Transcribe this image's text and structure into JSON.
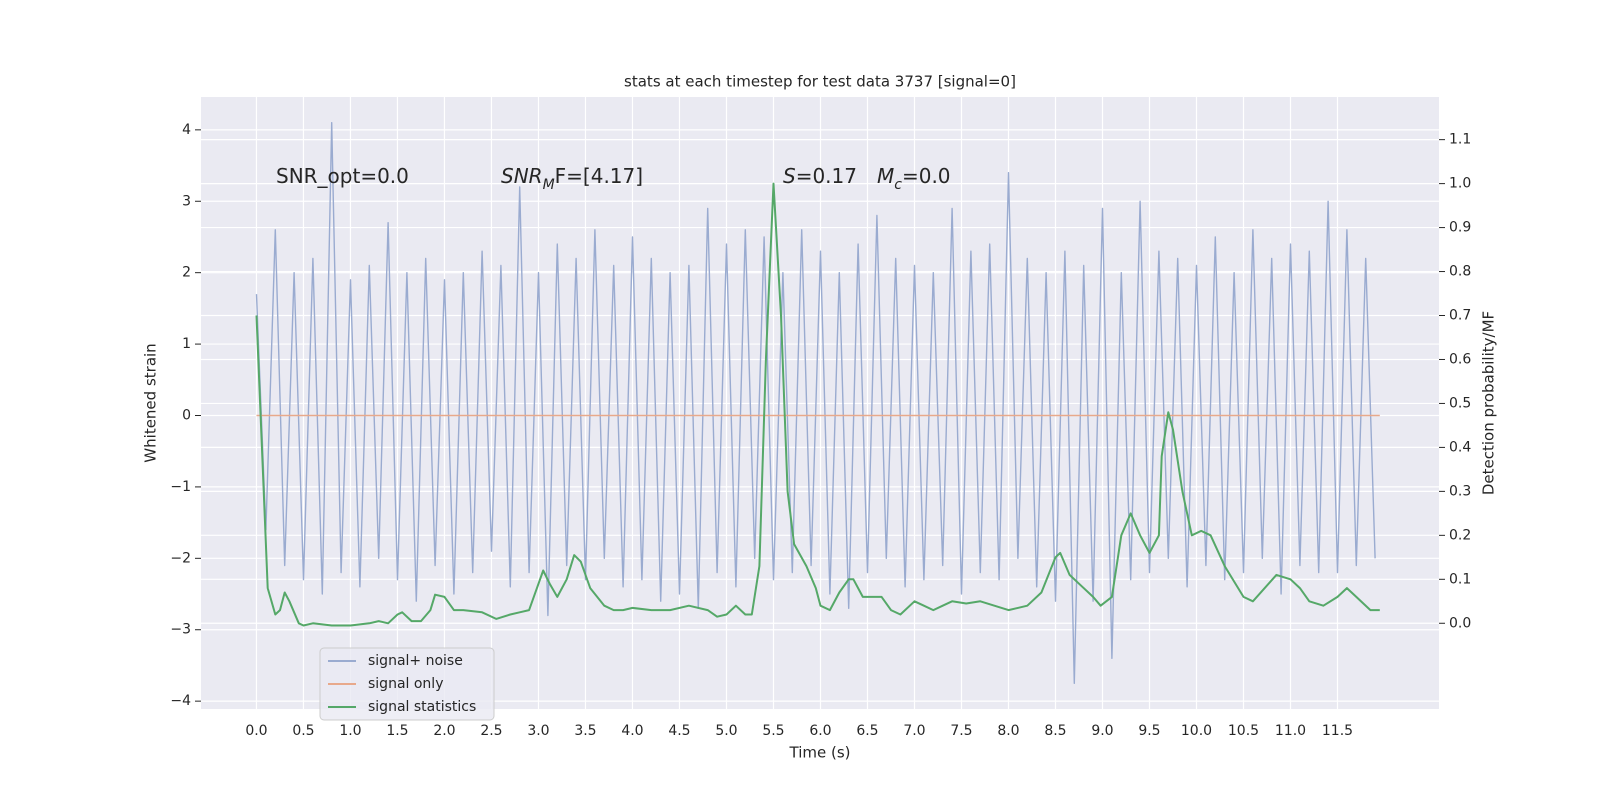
{
  "chart_data": {
    "type": "line",
    "title": "stats at each timestep for test data 3737 [signal=0]",
    "xlabel": "Time (s)",
    "ylabel": "Whitened strain",
    "y2label": "Detection probability/MF",
    "annotations": [
      {
        "segments": [
          {
            "text": "SNR_opt=0.0"
          }
        ]
      },
      {
        "segments": [
          {
            "text": "SNR",
            "italic": true
          },
          {
            "text": "M",
            "italic": true,
            "sub": true
          },
          {
            "text": "F=[4.17]"
          }
        ]
      },
      {
        "segments": [
          {
            "text": "S",
            "italic": true
          },
          {
            "text": "=0.17"
          }
        ]
      },
      {
        "segments": [
          {
            "text": "M",
            "italic": true
          },
          {
            "text": "c",
            "italic": true,
            "sub": true
          },
          {
            "text": "=0.0"
          }
        ]
      }
    ],
    "xlim": [
      -0.59,
      12.58
    ],
    "ylim": [
      -4.11,
      4.46
    ],
    "y2lim": [
      -0.195,
      1.197
    ],
    "xticks": [
      {
        "value": 0,
        "label": "0.0"
      },
      0.5,
      {
        "value": 1,
        "label": "1.0"
      },
      1.5,
      {
        "value": 2,
        "label": "2.0"
      },
      2.5,
      {
        "value": 3,
        "label": "3.0"
      },
      3.5,
      {
        "value": 4,
        "label": "4.0"
      },
      4.5,
      {
        "value": 5,
        "label": "5.0"
      },
      5.5,
      {
        "value": 6,
        "label": "6.0"
      },
      6.5,
      {
        "value": 7,
        "label": "7.0"
      },
      7.5,
      {
        "value": 8,
        "label": "8.0"
      },
      8.5,
      {
        "value": 9,
        "label": "9.0"
      },
      9.5,
      {
        "value": 10,
        "label": "10.0"
      },
      10.5,
      {
        "value": 11,
        "label": "11.0"
      },
      11.5
    ],
    "yticks": [
      {
        "value": -4,
        "label": "−4"
      },
      {
        "value": -3,
        "label": "−3"
      },
      {
        "value": -2,
        "label": "−2"
      },
      {
        "value": -1,
        "label": "−1"
      },
      0,
      1,
      2,
      3,
      4
    ],
    "y2ticks": [
      {
        "value": 0,
        "label": "0.0"
      },
      0.1,
      0.2,
      0.3,
      0.4,
      0.5,
      0.6,
      0.7,
      0.8,
      0.9,
      {
        "value": 1,
        "label": "1.0"
      },
      1.1
    ],
    "grid": true,
    "legend": "lower left",
    "series": [
      {
        "name": "signal+ noise",
        "color": "#9aabd0",
        "x": [
          0,
          0.1,
          0.2,
          0.3,
          0.4,
          0.5,
          0.6,
          0.7,
          0.8,
          0.9,
          1,
          1.1,
          1.2,
          1.3,
          1.4,
          1.5,
          1.6,
          1.7,
          1.8,
          1.9,
          2,
          2.1,
          2.2,
          2.3,
          2.4,
          2.5,
          2.6,
          2.7,
          2.8,
          2.9,
          3,
          3.1,
          3.2,
          3.3,
          3.4,
          3.5,
          3.6,
          3.7,
          3.8,
          3.9,
          4,
          4.1,
          4.2,
          4.3,
          4.4,
          4.5,
          4.6,
          4.7,
          4.8,
          4.9,
          5,
          5.1,
          5.2,
          5.3,
          5.4,
          5.5,
          5.6,
          5.7,
          5.8,
          5.9,
          6,
          6.1,
          6.2,
          6.3,
          6.4,
          6.5,
          6.6,
          6.7,
          6.8,
          6.9,
          7,
          7.1,
          7.2,
          7.3,
          7.4,
          7.5,
          7.6,
          7.7,
          7.8,
          7.9,
          8,
          8.1,
          8.2,
          8.3,
          8.4,
          8.5,
          8.6,
          8.7,
          8.8,
          8.9,
          9,
          9.1,
          9.2,
          9.3,
          9.4,
          9.5,
          9.6,
          9.7,
          9.8,
          9.9,
          10,
          10.1,
          10.2,
          10.3,
          10.4,
          10.5,
          10.6,
          10.7,
          10.8,
          10.9,
          11,
          11.1,
          11.2,
          11.3,
          11.4,
          11.5,
          11.6,
          11.7,
          11.8,
          11.9
        ],
        "values": [
          1.7,
          -1.6,
          2.6,
          -2.1,
          2.0,
          -2.3,
          2.2,
          -2.5,
          4.1,
          -2.2,
          1.9,
          -2.4,
          2.1,
          -2.0,
          2.7,
          -2.3,
          2.0,
          -2.6,
          2.2,
          -2.1,
          1.9,
          -2.5,
          2.0,
          -2.2,
          2.3,
          -1.9,
          2.1,
          -2.4,
          3.2,
          -2.2,
          2.0,
          -2.8,
          2.4,
          -2.1,
          2.2,
          -2.3,
          2.6,
          -2.0,
          2.1,
          -2.4,
          2.5,
          -2.3,
          2.2,
          -2.6,
          2.0,
          -2.5,
          2.1,
          -2.7,
          2.9,
          -2.2,
          2.4,
          -2.4,
          2.6,
          -2.0,
          2.5,
          -2.3,
          2.0,
          -2.2,
          2.6,
          -2.1,
          2.3,
          -2.5,
          2.0,
          -2.7,
          2.4,
          -2.2,
          2.8,
          -2.0,
          2.2,
          -2.4,
          2.1,
          -2.3,
          2.0,
          -2.1,
          2.9,
          -2.5,
          2.3,
          -2.2,
          2.4,
          -2.3,
          3.4,
          -2.0,
          2.2,
          -2.4,
          2.0,
          -2.6,
          2.3,
          -3.75,
          2.1,
          -2.6,
          2.9,
          -3.4,
          2.0,
          -2.3,
          3.0,
          -2.2,
          2.3,
          -2.0,
          2.2,
          -2.4,
          2.1,
          -2.1,
          2.5,
          -2.3,
          2.0,
          -2.2,
          2.6,
          -2.0,
          2.2,
          -2.5,
          2.4,
          -2.1,
          2.3,
          -2.2,
          3.0,
          -2.2,
          2.6,
          -2.1,
          2.2,
          -2.0
        ]
      },
      {
        "name": "signal only",
        "color": "#e8a98b",
        "x": [
          0,
          11.95
        ],
        "values": [
          0,
          0
        ]
      },
      {
        "name": "signal statistics",
        "color": "#55a868",
        "axis": "y2",
        "x": [
          0,
          0.12,
          0.2,
          0.25,
          0.3,
          0.35,
          0.45,
          0.5,
          0.6,
          0.8,
          1.0,
          1.2,
          1.3,
          1.4,
          1.5,
          1.55,
          1.65,
          1.75,
          1.85,
          1.9,
          2.0,
          2.1,
          2.2,
          2.4,
          2.55,
          2.7,
          2.8,
          2.9,
          3.0,
          3.05,
          3.12,
          3.2,
          3.3,
          3.38,
          3.45,
          3.55,
          3.7,
          3.8,
          3.9,
          4.0,
          4.2,
          4.4,
          4.6,
          4.8,
          4.9,
          5.0,
          5.1,
          5.2,
          5.27,
          5.35,
          5.42,
          5.5,
          5.58,
          5.65,
          5.72,
          5.85,
          5.95,
          6.0,
          6.1,
          6.2,
          6.3,
          6.35,
          6.45,
          6.55,
          6.65,
          6.75,
          6.85,
          7.0,
          7.1,
          7.2,
          7.3,
          7.4,
          7.55,
          7.7,
          7.85,
          8.0,
          8.2,
          8.35,
          8.5,
          8.55,
          8.65,
          8.75,
          8.9,
          8.98,
          9.1,
          9.2,
          9.3,
          9.4,
          9.5,
          9.6,
          9.63,
          9.7,
          9.75,
          9.85,
          9.95,
          10.05,
          10.15,
          10.3,
          10.5,
          10.6,
          10.85,
          11.0,
          11.1,
          11.2,
          11.35,
          11.5,
          11.6,
          11.7,
          11.85,
          11.95
        ],
        "values": [
          0.7,
          0.08,
          0.02,
          0.03,
          0.07,
          0.05,
          0.0,
          -0.005,
          0.0,
          -0.005,
          -0.005,
          0.0,
          0.005,
          0.0,
          0.02,
          0.025,
          0.005,
          0.005,
          0.03,
          0.065,
          0.06,
          0.03,
          0.03,
          0.025,
          0.01,
          0.02,
          0.025,
          0.03,
          0.09,
          0.12,
          0.09,
          0.06,
          0.1,
          0.155,
          0.14,
          0.08,
          0.04,
          0.03,
          0.03,
          0.035,
          0.03,
          0.03,
          0.04,
          0.03,
          0.015,
          0.02,
          0.04,
          0.02,
          0.02,
          0.13,
          0.6,
          1.0,
          0.7,
          0.3,
          0.18,
          0.13,
          0.08,
          0.04,
          0.03,
          0.07,
          0.1,
          0.1,
          0.06,
          0.06,
          0.06,
          0.03,
          0.02,
          0.05,
          0.04,
          0.03,
          0.04,
          0.05,
          0.045,
          0.05,
          0.04,
          0.03,
          0.04,
          0.07,
          0.15,
          0.16,
          0.11,
          0.09,
          0.06,
          0.04,
          0.06,
          0.2,
          0.25,
          0.2,
          0.16,
          0.2,
          0.38,
          0.48,
          0.44,
          0.3,
          0.2,
          0.21,
          0.2,
          0.13,
          0.06,
          0.05,
          0.11,
          0.1,
          0.08,
          0.05,
          0.04,
          0.06,
          0.08,
          0.06,
          0.03,
          0.03
        ]
      }
    ]
  }
}
